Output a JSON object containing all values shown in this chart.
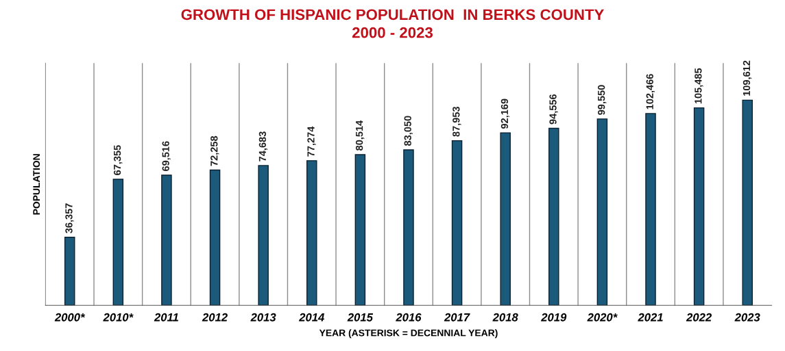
{
  "chart_data": {
    "type": "bar",
    "title": "GROWTH OF HISPANIC POPULATION  IN BERKS COUNTY\n2000 - 2023",
    "xlabel": "YEAR (ASTERISK = DECENNIAL YEAR)",
    "ylabel": "POPULATION",
    "categories": [
      "2000*",
      "2010*",
      "2011",
      "2012",
      "2013",
      "2014",
      "2015",
      "2016",
      "2017",
      "2018",
      "2019",
      "2020*",
      "2021",
      "2022",
      "2023"
    ],
    "values": [
      36357,
      67355,
      69516,
      72258,
      74683,
      77274,
      80514,
      83050,
      87953,
      92169,
      94556,
      99550,
      102466,
      105485,
      109612
    ],
    "value_labels": [
      "36,357",
      "67,355",
      "69,516",
      "72,258",
      "74,683",
      "77,274",
      "80,514",
      "83,050",
      "87,953",
      "92,169",
      "94,556",
      "99,550",
      "102,466",
      "105,485",
      "109,612"
    ],
    "color": "#1b5a7a",
    "grid": "x"
  }
}
